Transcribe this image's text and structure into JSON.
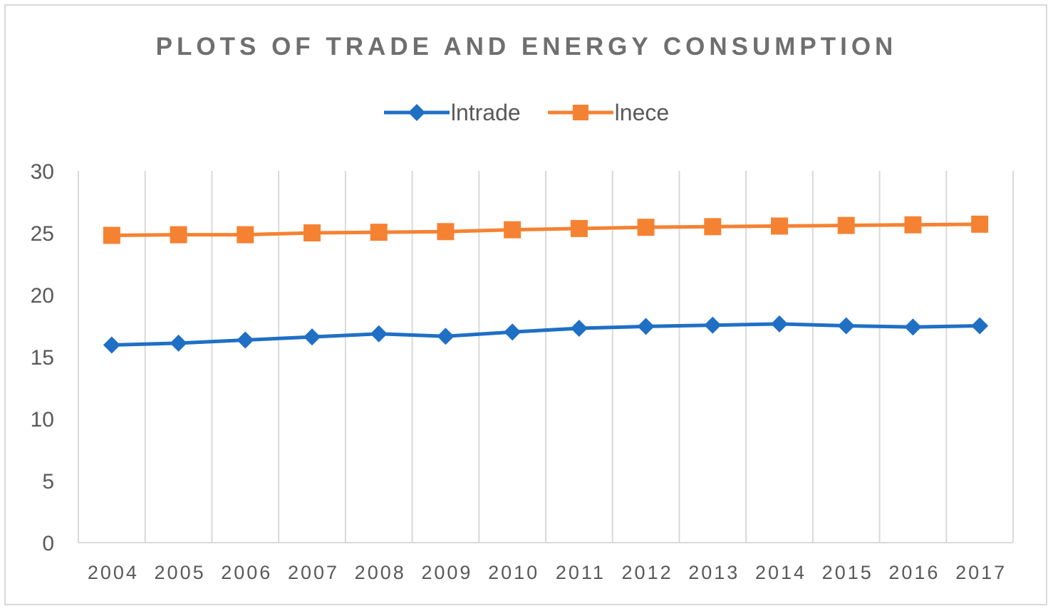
{
  "chart_data": {
    "type": "line",
    "title": "PLOTS OF TRADE AND ENERGY CONSUMPTION",
    "xlabel": "",
    "ylabel": "",
    "categories": [
      "2004",
      "2005",
      "2006",
      "2007",
      "2008",
      "2009",
      "2010",
      "2011",
      "2012",
      "2013",
      "2014",
      "2015",
      "2016",
      "2017"
    ],
    "ylim": [
      0,
      30
    ],
    "yticks": [
      "0",
      "5",
      "10",
      "15",
      "20",
      "25",
      "30"
    ],
    "grid": "vertical",
    "legend_position": "top",
    "series": [
      {
        "name": "lntrade",
        "color": "#1f6fc5",
        "marker": "diamond",
        "values": [
          15.95,
          16.1,
          16.35,
          16.6,
          16.85,
          16.65,
          17.0,
          17.3,
          17.45,
          17.55,
          17.65,
          17.5,
          17.4,
          17.5
        ]
      },
      {
        "name": "lnece",
        "color": "#f58232",
        "marker": "square",
        "values": [
          24.8,
          24.85,
          24.85,
          25.0,
          25.05,
          25.1,
          25.25,
          25.35,
          25.45,
          25.5,
          25.55,
          25.6,
          25.65,
          25.7
        ]
      }
    ]
  }
}
